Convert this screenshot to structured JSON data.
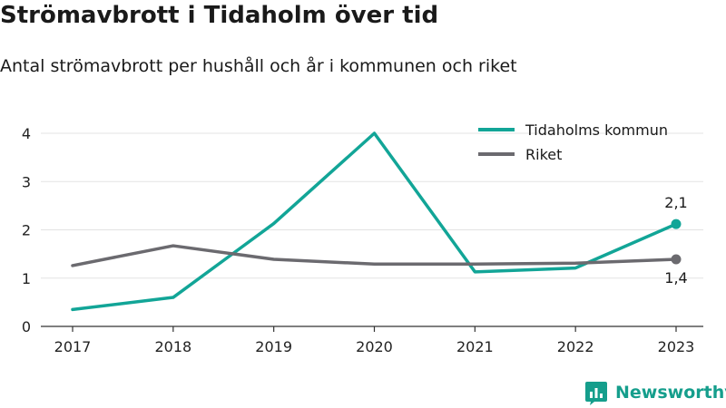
{
  "header": {
    "title": "Strömavbrott i Tidaholm över tid",
    "subtitle": "Antal strömavbrott per hushåll och år i kommunen och riket"
  },
  "brand": {
    "name": "Newsworthy",
    "icon": "newsworthy-logo-icon",
    "color": "#159e8c"
  },
  "chart_data": {
    "type": "line",
    "x": [
      "2017",
      "2018",
      "2019",
      "2020",
      "2021",
      "2022",
      "2023"
    ],
    "ylim": [
      0,
      4
    ],
    "yticks": [
      0,
      1,
      2,
      3,
      4
    ],
    "grid": true,
    "legend_position": "top-right",
    "series": [
      {
        "name": "Tidaholms kommun",
        "color": "#12a597",
        "values": [
          0.35,
          0.6,
          2.13,
          4.0,
          1.13,
          1.21,
          2.12
        ],
        "end_label": "2,1",
        "end_marker": true
      },
      {
        "name": "Riket",
        "color": "#6b6a6f",
        "values": [
          1.26,
          1.67,
          1.39,
          1.29,
          1.29,
          1.31,
          1.39
        ],
        "end_label": "1,4",
        "end_marker": true
      }
    ]
  }
}
